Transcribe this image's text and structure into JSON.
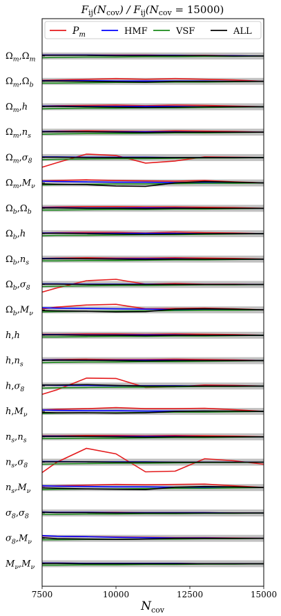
{
  "chart_data": {
    "type": "line",
    "title": "F_ij(N_cov) / F_ij(N_cov = 15000)",
    "xlabel": "N_cov",
    "xlim": [
      7500,
      15000
    ],
    "xticks": [
      7500,
      10000,
      12500,
      15000
    ],
    "x": [
      7500,
      8000,
      9000,
      10000,
      11000,
      12000,
      13000,
      14000,
      15000
    ],
    "legend": {
      "placement": "top",
      "entries": [
        {
          "name": "P_m",
          "color": "#e41a1c"
        },
        {
          "name": "HMF",
          "color": "#0000ff"
        },
        {
          "name": "VSF",
          "color": "#1a8a1a"
        },
        {
          "name": "ALL",
          "color": "#000000"
        }
      ]
    },
    "band_color": "#c0c0c0",
    "rows": [
      {
        "label": "Ω_m,Ω_m",
        "series": {
          "P_m": [
            0.3,
            0.3,
            0.3,
            0.3,
            0.3,
            0.2,
            0.2,
            0.1,
            0
          ],
          "HMF": [
            0.3,
            0.3,
            0.3,
            0.2,
            0.2,
            0.2,
            0.1,
            0.1,
            0
          ],
          "VSF": [
            -0.5,
            -0.4,
            -0.3,
            -0.3,
            -0.2,
            -0.2,
            -0.1,
            -0.1,
            0
          ],
          "ALL": [
            0.2,
            0.2,
            0.2,
            0.1,
            0.1,
            0.1,
            0.1,
            0,
            0
          ]
        }
      },
      {
        "label": "Ω_m,Ω_b",
        "series": {
          "P_m": [
            0.3,
            0.4,
            0.6,
            0.8,
            0.6,
            0.8,
            0.6,
            0.4,
            0
          ],
          "HMF": [
            0.2,
            0.2,
            0.2,
            0.1,
            0.1,
            0.1,
            0.1,
            0,
            0
          ],
          "VSF": [
            -0.5,
            -0.5,
            -0.4,
            -0.3,
            -0.3,
            -0.2,
            -0.2,
            -0.1,
            0
          ],
          "ALL": [
            0.1,
            0.1,
            0,
            -0.1,
            -0.2,
            0,
            0,
            0,
            0
          ]
        }
      },
      {
        "label": "Ω_m,h",
        "series": {
          "P_m": [
            0.2,
            0.3,
            0.4,
            0.5,
            0.3,
            0.5,
            0.4,
            0.2,
            0
          ],
          "HMF": [
            0.2,
            0.2,
            0.1,
            0.1,
            0.1,
            0.1,
            0,
            0,
            0
          ],
          "VSF": [
            -0.6,
            -0.5,
            -0.4,
            -0.4,
            -0.3,
            -0.3,
            -0.2,
            -0.1,
            0
          ],
          "ALL": [
            0.1,
            0.1,
            0,
            -0.1,
            -0.2,
            -0.1,
            0,
            0,
            0
          ]
        }
      },
      {
        "label": "Ω_m,n_s",
        "series": {
          "P_m": [
            0.2,
            0.3,
            0.4,
            0.3,
            0.2,
            0.4,
            0.3,
            0.2,
            0
          ],
          "HMF": [
            0.2,
            0.2,
            0.1,
            0.1,
            0.1,
            0.1,
            0,
            0,
            0
          ],
          "VSF": [
            -0.6,
            -0.5,
            -0.4,
            -0.4,
            -0.3,
            -0.2,
            -0.2,
            -0.1,
            0
          ],
          "ALL": [
            0.1,
            0.1,
            0.1,
            0,
            -0.1,
            0,
            0,
            0,
            0
          ]
        }
      },
      {
        "label": "Ω_m,σ_8",
        "series": {
          "P_m": [
            -2.8,
            -1.5,
            1.0,
            0.6,
            -1.6,
            -1.0,
            0.2,
            0.1,
            0
          ],
          "HMF": [
            0.2,
            0.2,
            0.1,
            0.1,
            0.1,
            0,
            0,
            0,
            0
          ],
          "VSF": [
            -0.6,
            -0.5,
            -0.4,
            -0.3,
            -0.3,
            -0.2,
            -0.1,
            -0.1,
            0
          ],
          "ALL": [
            0.1,
            0.1,
            0,
            0,
            0,
            0,
            0,
            0,
            0
          ]
        }
      },
      {
        "label": "Ω_m,M_ν",
        "series": {
          "P_m": [
            0.6,
            0.7,
            0.9,
            0.7,
            0.6,
            0.5,
            0.7,
            0.3,
            0
          ],
          "HMF": [
            0.5,
            0.4,
            0.3,
            0.2,
            0.2,
            0.1,
            0.1,
            0,
            0
          ],
          "VSF": [
            -0.6,
            -0.5,
            -0.4,
            -0.3,
            -0.3,
            -0.2,
            -0.1,
            -0.1,
            0
          ],
          "ALL": [
            -0.3,
            -0.4,
            -0.5,
            -0.9,
            -1.0,
            0,
            0.4,
            0.2,
            0
          ]
        }
      },
      {
        "label": "Ω_b,Ω_b",
        "series": {
          "P_m": [
            0.3,
            0.4,
            0.5,
            0.5,
            0.4,
            0.4,
            0.3,
            0.2,
            0
          ],
          "HMF": [
            0.2,
            0.2,
            0.1,
            0.1,
            0.1,
            0.1,
            0,
            0,
            0
          ],
          "VSF": [
            -0.5,
            -0.5,
            -0.4,
            -0.3,
            -0.3,
            -0.2,
            -0.2,
            -0.1,
            0
          ],
          "ALL": [
            0.1,
            0.1,
            0,
            0,
            -0.1,
            0,
            0,
            0,
            0
          ]
        }
      },
      {
        "label": "Ω_b,h",
        "series": {
          "P_m": [
            0.2,
            0.3,
            0.4,
            0.4,
            0.2,
            0.5,
            0.3,
            0.2,
            0
          ],
          "HMF": [
            0.2,
            0.2,
            0.1,
            0.1,
            0.1,
            0.1,
            0,
            0,
            0
          ],
          "VSF": [
            -0.6,
            -0.5,
            -0.5,
            -0.4,
            -0.3,
            -0.3,
            -0.2,
            -0.1,
            0
          ],
          "ALL": [
            0.1,
            0.1,
            0,
            -0.1,
            -0.2,
            -0.1,
            0,
            0,
            0
          ]
        }
      },
      {
        "label": "Ω_b,n_s",
        "series": {
          "P_m": [
            0.2,
            0.3,
            0.4,
            0.3,
            0.3,
            0.4,
            0.3,
            0.2,
            0
          ],
          "HMF": [
            0.2,
            0.2,
            0.1,
            0.1,
            0.1,
            0.1,
            0,
            0,
            0
          ],
          "VSF": [
            -0.5,
            -0.5,
            -0.4,
            -0.4,
            -0.3,
            -0.2,
            -0.2,
            -0.1,
            0
          ],
          "ALL": [
            0.1,
            0.1,
            0.1,
            0,
            -0.1,
            0,
            0,
            0,
            0
          ]
        }
      },
      {
        "label": "Ω_b,σ_8",
        "series": {
          "P_m": [
            -2.2,
            -1.0,
            1.1,
            1.5,
            0.1,
            0.3,
            0.1,
            0.1,
            0
          ],
          "HMF": [
            0.2,
            0.2,
            0.1,
            0.1,
            0.1,
            0,
            0,
            0,
            0
          ],
          "VSF": [
            -0.6,
            -0.5,
            -0.4,
            -0.3,
            -0.3,
            -0.2,
            -0.1,
            -0.1,
            0
          ],
          "ALL": [
            0.1,
            0.1,
            0,
            0,
            0,
            0,
            0,
            0,
            0
          ]
        }
      },
      {
        "label": "Ω_b,M_ν",
        "series": {
          "P_m": [
            0.3,
            0.8,
            1.4,
            1.6,
            0.3,
            0.4,
            0.5,
            0.3,
            0
          ],
          "HMF": [
            0.6,
            0.5,
            0.4,
            0.3,
            0.2,
            0.1,
            0.1,
            0,
            0
          ],
          "VSF": [
            -0.6,
            -0.5,
            -0.4,
            -0.4,
            -0.3,
            -0.2,
            -0.1,
            -0.1,
            0
          ],
          "ALL": [
            -0.2,
            -0.3,
            -0.4,
            -0.6,
            -0.5,
            0.2,
            0.3,
            0.2,
            0
          ]
        }
      },
      {
        "label": "h,h",
        "series": {
          "P_m": [
            0.3,
            0.3,
            0.4,
            0.4,
            0.3,
            0.4,
            0.3,
            0.2,
            0
          ],
          "HMF": [
            0.2,
            0.2,
            0.1,
            0.1,
            0.1,
            0.1,
            0,
            0,
            0
          ],
          "VSF": [
            -0.5,
            -0.5,
            -0.4,
            -0.3,
            -0.3,
            -0.2,
            -0.2,
            -0.1,
            0
          ],
          "ALL": [
            0.1,
            0.1,
            0,
            0,
            -0.1,
            0,
            0,
            0,
            0
          ]
        }
      },
      {
        "label": "h,n_s",
        "series": {
          "P_m": [
            0.2,
            0.3,
            0.4,
            0.3,
            0.3,
            0.4,
            0.3,
            0.2,
            0
          ],
          "HMF": [
            0.2,
            0.2,
            0.1,
            0.1,
            0.1,
            0.1,
            0,
            0,
            0
          ],
          "VSF": [
            -0.6,
            -0.5,
            -0.4,
            -0.4,
            -0.3,
            -0.3,
            -0.2,
            -0.1,
            0
          ],
          "ALL": [
            0.1,
            0.1,
            0.1,
            0,
            -0.1,
            0,
            0,
            0,
            0
          ]
        }
      },
      {
        "label": "h,σ_8",
        "series": {
          "P_m": [
            -2.4,
            -1.1,
            2.3,
            2.2,
            -0.4,
            -0.2,
            0.3,
            0.2,
            0
          ],
          "HMF": [
            0.3,
            0.2,
            0.2,
            0.1,
            0.1,
            0.1,
            0,
            0,
            0
          ],
          "VSF": [
            -0.6,
            -0.5,
            -0.4,
            -0.3,
            -0.3,
            -0.2,
            -0.1,
            -0.1,
            0
          ],
          "ALL": [
            0.3,
            0.3,
            0.4,
            0.2,
            0,
            0,
            0,
            0,
            0
          ]
        }
      },
      {
        "label": "h,M_ν",
        "series": {
          "P_m": [
            0.4,
            0.6,
            0.8,
            1.1,
            0.8,
            0.8,
            0.9,
            0.5,
            0
          ],
          "HMF": [
            0.4,
            0.3,
            0.2,
            0.2,
            0.1,
            0.1,
            0.1,
            0,
            0
          ],
          "VSF": [
            -0.6,
            -0.5,
            -0.4,
            -0.4,
            -0.3,
            -0.2,
            -0.2,
            -0.1,
            0
          ],
          "ALL": [
            -0.3,
            -0.4,
            -0.4,
            -0.5,
            -0.4,
            0,
            0.1,
            0.1,
            0
          ]
        }
      },
      {
        "label": "n_s,n_s",
        "series": {
          "P_m": [
            0.3,
            0.3,
            0.4,
            0.4,
            0.3,
            0.4,
            0.3,
            0.2,
            0
          ],
          "HMF": [
            0.2,
            0.2,
            0.1,
            0.1,
            0.1,
            0.1,
            0,
            0,
            0
          ],
          "VSF": [
            -0.5,
            -0.5,
            -0.4,
            -0.4,
            -0.3,
            -0.2,
            -0.2,
            -0.1,
            0
          ],
          "ALL": [
            0.1,
            0.1,
            0.1,
            0,
            -0.1,
            0,
            0,
            0,
            0
          ]
        }
      },
      {
        "label": "n_s,σ_8",
        "series": {
          "P_m": [
            -3.0,
            0.0,
            4.0,
            2.4,
            -2.8,
            -2.6,
            1.0,
            0.4,
            -0.6
          ],
          "HMF": [
            0.2,
            0.2,
            0.1,
            0.1,
            0.1,
            0,
            0,
            0,
            0
          ],
          "VSF": [
            -0.6,
            -0.5,
            -0.4,
            -0.3,
            -0.3,
            -0.2,
            -0.1,
            -0.1,
            0
          ],
          "ALL": [
            0.1,
            0.1,
            0.1,
            0,
            0,
            0,
            0,
            0,
            0
          ]
        }
      },
      {
        "label": "n_s,M_ν",
        "series": {
          "P_m": [
            0.4,
            0.5,
            0.7,
            0.9,
            0.8,
            0.9,
            1.0,
            0.5,
            0
          ],
          "HMF": [
            0.5,
            0.4,
            0.3,
            0.2,
            0.2,
            0.1,
            0.1,
            0,
            0
          ],
          "VSF": [
            -0.6,
            -0.5,
            -0.4,
            -0.4,
            -0.3,
            -0.2,
            -0.2,
            -0.1,
            0
          ],
          "ALL": [
            -0.1,
            -0.2,
            -0.4,
            -0.5,
            -0.6,
            0.1,
            0.3,
            0.2,
            0
          ]
        }
      },
      {
        "label": "σ_8,σ_8",
        "series": {
          "P_m": [
            0.3,
            0.2,
            0.2,
            0.2,
            0.1,
            0.1,
            0.1,
            0,
            0
          ],
          "HMF": [
            0.3,
            0.2,
            0.2,
            0.1,
            0.1,
            0.1,
            0.1,
            0,
            0
          ],
          "VSF": [
            -0.4,
            -0.4,
            -0.3,
            -0.3,
            -0.2,
            -0.2,
            -0.1,
            -0.1,
            0
          ],
          "ALL": [
            0.2,
            0.1,
            0.1,
            0,
            0,
            0,
            0,
            0,
            0
          ]
        }
      },
      {
        "label": "σ_8,M_ν",
        "series": {
          "P_m": [
            0.7,
            0.6,
            0.5,
            0.4,
            0.3,
            0.2,
            0.2,
            0.1,
            0
          ],
          "HMF": [
            0.8,
            0.6,
            0.5,
            0.3,
            0.2,
            0.1,
            0.1,
            0,
            0
          ],
          "VSF": [
            -0.4,
            -0.4,
            -0.3,
            -0.3,
            -0.2,
            -0.2,
            -0.1,
            -0.1,
            0
          ],
          "ALL": [
            0.2,
            -0.1,
            -0.2,
            -0.3,
            -0.2,
            0,
            0,
            0,
            0
          ]
        }
      },
      {
        "label": "M_ν,M_ν",
        "series": {
          "P_m": [
            0.2,
            0.2,
            0.1,
            0.1,
            0.1,
            0.1,
            0,
            0,
            0
          ],
          "HMF": [
            0.2,
            0.2,
            0.1,
            0.1,
            0.1,
            0.1,
            0,
            0,
            0
          ],
          "VSF": [
            -0.4,
            -0.4,
            -0.3,
            -0.3,
            -0.2,
            -0.2,
            -0.1,
            -0.1,
            0
          ],
          "ALL": [
            0.1,
            0.1,
            0,
            0,
            0,
            0,
            0,
            0,
            0
          ]
        }
      }
    ]
  }
}
